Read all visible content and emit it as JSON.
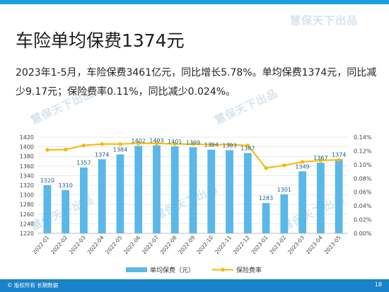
{
  "slide": {
    "title": "车险单均保费1374元",
    "summary": "2023年1-5月，车险保费3461亿元，同比增长5.78%。单均保费1374元，同比减少9.17元；保险费率0.11%，同比减少0.024%。",
    "watermark": "慧保天下出品",
    "footer": "© 版权所有 长期数据",
    "page_number": "18"
  },
  "colors": {
    "bar": "#5ab8e8",
    "line": "#f5b800",
    "label": "#1f5f8a",
    "accent": "#1a9fe0"
  },
  "chart_data": {
    "type": "bar",
    "categories": [
      "2022-01",
      "2022-02",
      "2022-03",
      "2022-04",
      "2022-05",
      "2022-06",
      "2022-07",
      "2022-08",
      "2022-09",
      "2022-10",
      "2022-11",
      "2022-12",
      "2023-01",
      "2023-02",
      "2023-03",
      "2023-04",
      "2023-05"
    ],
    "series": [
      {
        "name": "单均保费（元）",
        "type": "bar",
        "axis": "left",
        "values": [
          1320,
          1310,
          1357,
          1374,
          1384,
          1402,
          1403,
          1401,
          1399,
          1394,
          1393,
          1387,
          1283,
          1301,
          1349,
          1367,
          1374
        ]
      },
      {
        "name": "保险费率",
        "type": "line",
        "axis": "right",
        "values": [
          0.1215,
          0.122,
          0.128,
          0.13,
          0.13,
          0.131,
          0.131,
          0.13,
          0.13,
          0.129,
          0.129,
          0.128,
          0.095,
          0.099,
          0.104,
          0.106,
          0.107
        ]
      }
    ],
    "yleft": {
      "min": 1220,
      "max": 1420,
      "step": 20,
      "ticks": [
        "1220",
        "1240",
        "1260",
        "1280",
        "1300",
        "1320",
        "1340",
        "1360",
        "1380",
        "1400",
        "1420"
      ]
    },
    "yright": {
      "min": 0,
      "max": 0.14,
      "step": 0.02,
      "ticks": [
        "0.00%",
        "0.02%",
        "0.04%",
        "0.06%",
        "0.08%",
        "0.10%",
        "0.12%",
        "0.14%"
      ]
    },
    "grid": true,
    "legend": "bottom"
  }
}
